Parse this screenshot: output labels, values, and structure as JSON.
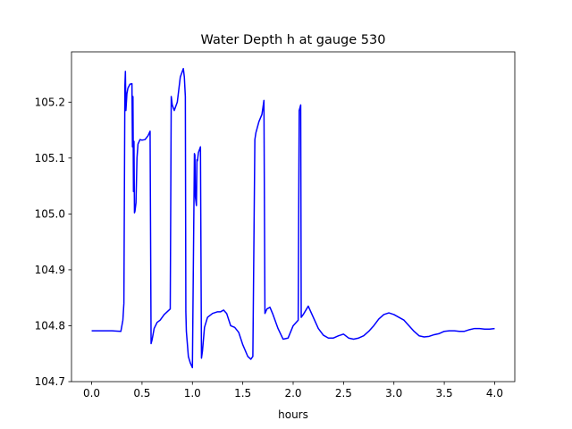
{
  "chart_data": {
    "type": "line",
    "title": "Water Depth h at gauge 530",
    "xlabel": "hours",
    "ylabel": "",
    "xlim": [
      -0.2,
      4.2
    ],
    "ylim": [
      104.7,
      105.29
    ],
    "xticks": [
      0.0,
      0.5,
      1.0,
      1.5,
      2.0,
      2.5,
      3.0,
      3.5,
      4.0
    ],
    "xtick_labels": [
      "0.0",
      "0.5",
      "1.0",
      "1.5",
      "2.0",
      "2.5",
      "3.0",
      "3.5",
      "4.0"
    ],
    "yticks": [
      104.7,
      104.8,
      104.9,
      105.0,
      105.1,
      105.2
    ],
    "ytick_labels": [
      "104.7",
      "104.8",
      "104.9",
      "105.0",
      "105.1",
      "105.2"
    ],
    "grid": false,
    "series": [
      {
        "color": "#0000ff",
        "x": [
          0.0,
          0.1,
          0.2,
          0.29,
          0.31,
          0.32,
          0.33,
          0.335,
          0.34,
          0.35,
          0.36,
          0.38,
          0.4,
          0.405,
          0.41,
          0.415,
          0.42,
          0.425,
          0.43,
          0.44,
          0.45,
          0.46,
          0.48,
          0.5,
          0.53,
          0.56,
          0.58,
          0.59,
          0.6,
          0.62,
          0.65,
          0.68,
          0.72,
          0.75,
          0.78,
          0.79,
          0.8,
          0.82,
          0.85,
          0.88,
          0.9,
          0.91,
          0.92,
          0.93,
          0.935,
          0.94,
          0.96,
          0.98,
          1.0,
          1.02,
          1.025,
          1.03,
          1.04,
          1.045,
          1.05,
          1.06,
          1.08,
          1.09,
          1.1,
          1.12,
          1.15,
          1.2,
          1.25,
          1.28,
          1.31,
          1.34,
          1.38,
          1.42,
          1.46,
          1.5,
          1.55,
          1.58,
          1.6,
          1.62,
          1.63,
          1.66,
          1.69,
          1.7,
          1.71,
          1.72,
          1.74,
          1.77,
          1.8,
          1.85,
          1.9,
          1.95,
          2.0,
          2.05,
          2.06,
          2.075,
          2.08,
          2.1,
          2.15,
          2.2,
          2.25,
          2.3,
          2.35,
          2.4,
          2.45,
          2.5,
          2.55,
          2.6,
          2.65,
          2.7,
          2.75,
          2.8,
          2.85,
          2.9,
          2.95,
          3.0,
          3.05,
          3.1,
          3.15,
          3.2,
          3.25,
          3.3,
          3.35,
          3.4,
          3.45,
          3.5,
          3.55,
          3.6,
          3.65,
          3.7,
          3.75,
          3.8,
          3.85,
          3.9,
          3.95,
          4.0
        ],
        "y": [
          104.791,
          104.791,
          104.791,
          104.79,
          104.81,
          104.84,
          105.23,
          105.255,
          105.185,
          105.215,
          105.225,
          105.232,
          105.233,
          105.12,
          105.21,
          105.04,
          105.13,
          105.002,
          105.005,
          105.02,
          105.1,
          105.125,
          105.133,
          105.132,
          105.133,
          105.14,
          105.148,
          104.768,
          104.775,
          104.795,
          104.806,
          104.81,
          104.82,
          104.825,
          104.83,
          105.21,
          105.195,
          105.185,
          105.2,
          105.245,
          105.255,
          105.26,
          105.245,
          105.21,
          104.825,
          104.79,
          104.745,
          104.733,
          104.725,
          105.108,
          105.105,
          105.03,
          105.015,
          105.097,
          105.095,
          105.11,
          105.12,
          104.742,
          104.755,
          104.797,
          104.815,
          104.822,
          104.825,
          104.825,
          104.828,
          104.822,
          104.8,
          104.797,
          104.788,
          104.766,
          104.745,
          104.74,
          104.745,
          105.133,
          105.145,
          105.165,
          105.178,
          105.19,
          105.203,
          104.822,
          104.83,
          104.833,
          104.82,
          104.795,
          104.776,
          104.778,
          104.8,
          104.81,
          105.185,
          105.195,
          104.815,
          104.82,
          104.835,
          104.815,
          104.795,
          104.783,
          104.778,
          104.778,
          104.782,
          104.785,
          104.778,
          104.776,
          104.778,
          104.782,
          104.79,
          104.8,
          104.812,
          104.82,
          104.823,
          104.82,
          104.815,
          104.81,
          104.8,
          104.79,
          104.782,
          104.78,
          104.781,
          104.784,
          104.786,
          104.79,
          104.791,
          104.791,
          104.79,
          104.79,
          104.793,
          104.795,
          104.795,
          104.794,
          104.794,
          104.795
        ]
      }
    ]
  }
}
